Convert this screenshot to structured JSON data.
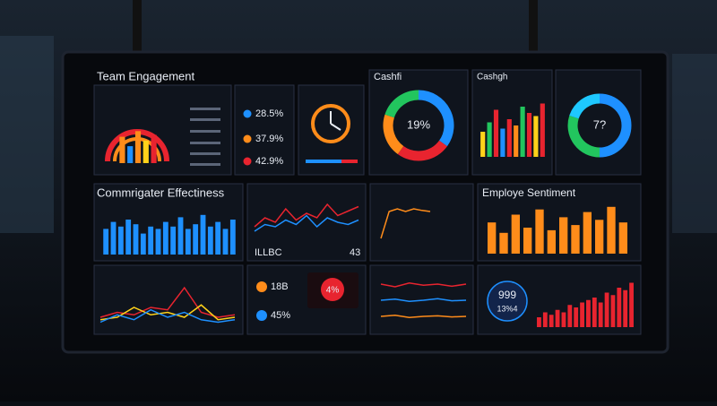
{
  "header": {
    "title": "Team Engagement",
    "title_2": "Cashfi",
    "title_3": "Cashgh",
    "title_4": "Commrigater Effectiness",
    "title_5": "Employe Sentiment"
  },
  "metrics": {
    "values": [
      "28.5%",
      "37.9%",
      "42.9%"
    ],
    "colors": [
      "#1e90ff",
      "#ff8c1a",
      "#e8242f"
    ]
  },
  "tiles": {
    "code": "ILLBC",
    "count": "43",
    "amount": "18B",
    "rate": "45%",
    "alert": "4%",
    "score": "999",
    "share": "13%4"
  },
  "charts": [
    {
      "type": "bar",
      "ylim": [
        0,
        100
      ],
      "values": [
        70,
        45,
        85,
        60,
        75
      ],
      "colors": [
        "#ff8c1a",
        "#1e90ff",
        "#ff8c1a",
        "#ffd21a",
        "#e8242f"
      ]
    },
    {
      "type": "donut",
      "center": "19%",
      "values": [
        35,
        25,
        20,
        20
      ],
      "colors": [
        "#1e90ff",
        "#e8242f",
        "#ff8c1a",
        "#22c55e"
      ]
    },
    {
      "type": "bar",
      "ylim": [
        0,
        100
      ],
      "values": [
        40,
        55,
        75,
        45,
        60,
        50,
        80,
        70,
        65,
        85
      ],
      "colors": [
        "#ffd21a",
        "#22c55e",
        "#e8242f",
        "#1e90ff",
        "#e8242f",
        "#ff8c1a",
        "#22c55e",
        "#e8242f",
        "#ffd21a",
        "#e8242f"
      ]
    },
    {
      "type": "donut",
      "center": "7?",
      "values": [
        50,
        30,
        20
      ],
      "colors": [
        "#1e90ff",
        "#22c55e",
        "#1ec8ff"
      ]
    },
    {
      "type": "bar",
      "ylim": [
        0,
        100
      ],
      "color": "#1e90ff",
      "values": [
        55,
        70,
        60,
        75,
        65,
        45,
        60,
        55,
        70,
        60,
        80,
        55,
        65,
        85,
        60,
        70,
        55,
        75
      ]
    },
    {
      "type": "line",
      "ylim": [
        0,
        100
      ],
      "series": [
        {
          "color": "#e8242f",
          "values": [
            20,
            30,
            25,
            40,
            35,
            80,
            30,
            20,
            25
          ]
        },
        {
          "color": "#ffd21a",
          "values": [
            15,
            20,
            40,
            25,
            30,
            20,
            45,
            15,
            20
          ]
        },
        {
          "color": "#1e90ff",
          "values": [
            10,
            25,
            15,
            35,
            20,
            30,
            15,
            10,
            15
          ]
        }
      ]
    },
    {
      "type": "line",
      "ylim": [
        0,
        100
      ],
      "series": [
        {
          "color": "#e8242f",
          "values": [
            30,
            50,
            40,
            70,
            45,
            60,
            50,
            80,
            55,
            65,
            75
          ]
        },
        {
          "color": "#1e90ff",
          "values": [
            20,
            35,
            30,
            45,
            35,
            55,
            30,
            50,
            40,
            35,
            45
          ]
        }
      ]
    },
    {
      "type": "line",
      "ylim": [
        0,
        100
      ],
      "series": [
        {
          "color": "#ff8c1a",
          "values": [
            20,
            70,
            75,
            70,
            75,
            72,
            70
          ]
        }
      ]
    },
    {
      "type": "line",
      "ylim": [
        0,
        100
      ],
      "series": [
        {
          "color": "#e8242f",
          "values": [
            80,
            75,
            82,
            78,
            80,
            76,
            80
          ]
        },
        {
          "color": "#1e90ff",
          "values": [
            50,
            52,
            48,
            50,
            53,
            49,
            50
          ]
        },
        {
          "color": "#ff8c1a",
          "values": [
            20,
            22,
            18,
            20,
            21,
            19,
            20
          ]
        }
      ]
    },
    {
      "type": "bar",
      "ylim": [
        0,
        100
      ],
      "color": "#ff8c1a",
      "values": [
        60,
        40,
        75,
        50,
        85,
        45,
        70,
        55,
        80,
        65,
        90,
        60
      ]
    },
    {
      "type": "bar",
      "ylim": [
        0,
        100
      ],
      "color": "#e8242f",
      "values": [
        20,
        30,
        25,
        35,
        30,
        45,
        40,
        50,
        55,
        60,
        50,
        70,
        65,
        80,
        75,
        90
      ]
    }
  ]
}
